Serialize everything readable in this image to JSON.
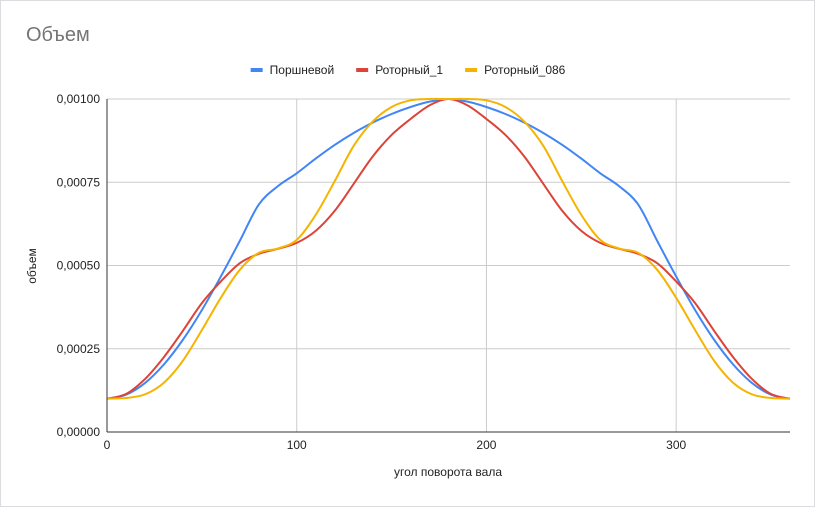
{
  "chart_data": {
    "type": "line",
    "title": "Объем",
    "xlabel": "угол поворота вала",
    "ylabel": "объем",
    "xlim": [
      0,
      360
    ],
    "ylim": [
      0,
      0.001
    ],
    "x_ticks": [
      "0",
      "100",
      "200",
      "300"
    ],
    "y_ticks": [
      "0,00000",
      "0,00025",
      "0,00050",
      "0,00075",
      "0,00100"
    ],
    "grid": true,
    "legend_position": "top",
    "x": [
      0,
      10,
      20,
      30,
      40,
      50,
      60,
      70,
      80,
      90,
      100,
      110,
      120,
      130,
      140,
      150,
      160,
      170,
      180,
      190,
      200,
      210,
      220,
      230,
      240,
      250,
      260,
      270,
      280,
      290,
      300,
      310,
      320,
      330,
      340,
      350,
      360
    ],
    "series": [
      {
        "name": "Поршневой",
        "color": "#4285f4",
        "values": [
          0.0001,
          0.000112,
          0.000147,
          0.000203,
          0.000277,
          0.000366,
          0.000467,
          0.000574,
          0.000683,
          0.000738,
          0.000777,
          0.000821,
          0.000862,
          0.000898,
          0.000929,
          0.000955,
          0.000976,
          0.000992,
          0.001,
          0.000992,
          0.000976,
          0.000955,
          0.000929,
          0.000898,
          0.000862,
          0.000821,
          0.000777,
          0.000738,
          0.000683,
          0.000574,
          0.000467,
          0.000366,
          0.000277,
          0.000203,
          0.000147,
          0.000112,
          0.0001
        ]
      },
      {
        "name": "Роторный_1",
        "color": "#db4437",
        "values": [
          0.0001,
          0.000114,
          0.000159,
          0.000225,
          0.000304,
          0.000387,
          0.000452,
          0.000507,
          0.000535,
          0.00055,
          0.000568,
          0.000604,
          0.000664,
          0.000745,
          0.000827,
          0.000892,
          0.00094,
          0.000981,
          0.001,
          0.000981,
          0.00094,
          0.000892,
          0.000827,
          0.000745,
          0.000664,
          0.000604,
          0.000568,
          0.00055,
          0.000535,
          0.000507,
          0.000452,
          0.000387,
          0.000304,
          0.000225,
          0.000159,
          0.000114,
          0.0001
        ]
      },
      {
        "name": "Роторный_086",
        "color": "#f4b400",
        "values": [
          0.0001,
          0.000102,
          0.000113,
          0.000148,
          0.000214,
          0.000306,
          0.000403,
          0.000487,
          0.000538,
          0.000551,
          0.000577,
          0.000652,
          0.000753,
          0.000859,
          0.000932,
          0.000976,
          0.000996,
          0.001,
          0.001,
          0.001,
          0.000996,
          0.000976,
          0.000932,
          0.000859,
          0.000753,
          0.000652,
          0.000577,
          0.000551,
          0.000538,
          0.000487,
          0.000403,
          0.000306,
          0.000214,
          0.000148,
          0.000113,
          0.000102,
          0.0001
        ]
      }
    ]
  }
}
